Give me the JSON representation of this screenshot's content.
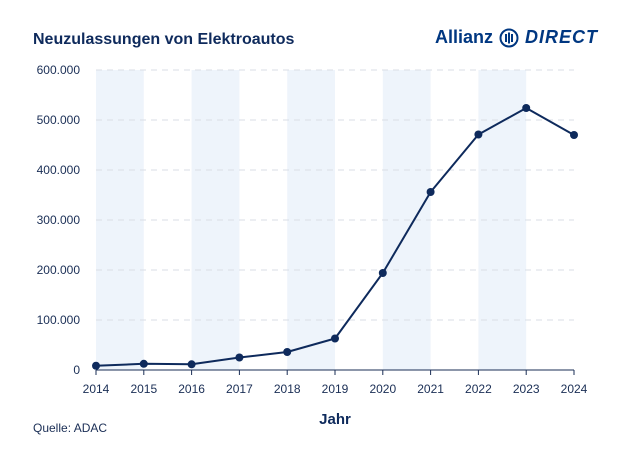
{
  "header": {
    "title": "Neuzulassungen von Elektroautos",
    "logo_brand": "Allianz",
    "logo_sub": "DIRECT",
    "logo_icon": "allianz-eagle-icon"
  },
  "footer": {
    "source": "Quelle: ADAC"
  },
  "colors": {
    "line": "#0e2a5c",
    "band": "#eef4fb",
    "grid": "#d9dee6",
    "axis": "#1a2e55"
  },
  "chart_data": {
    "type": "line",
    "title": "Neuzulassungen von Elektroautos",
    "xlabel": "Jahr",
    "ylabel": "",
    "x": [
      "2014",
      "2015",
      "2016",
      "2017",
      "2018",
      "2019",
      "2020",
      "2021",
      "2022",
      "2023",
      "2024"
    ],
    "values": [
      8500,
      12400,
      11400,
      25000,
      36000,
      63000,
      194000,
      356000,
      471000,
      524000,
      470000
    ],
    "ylim": [
      0,
      600000
    ],
    "yticks": [
      0,
      100000,
      200000,
      300000,
      400000,
      500000,
      600000
    ],
    "ytick_labels": [
      "0",
      "100.000",
      "200.000",
      "300.000",
      "400.000",
      "500.000",
      "600.000"
    ],
    "grid": true,
    "legend": "none"
  }
}
